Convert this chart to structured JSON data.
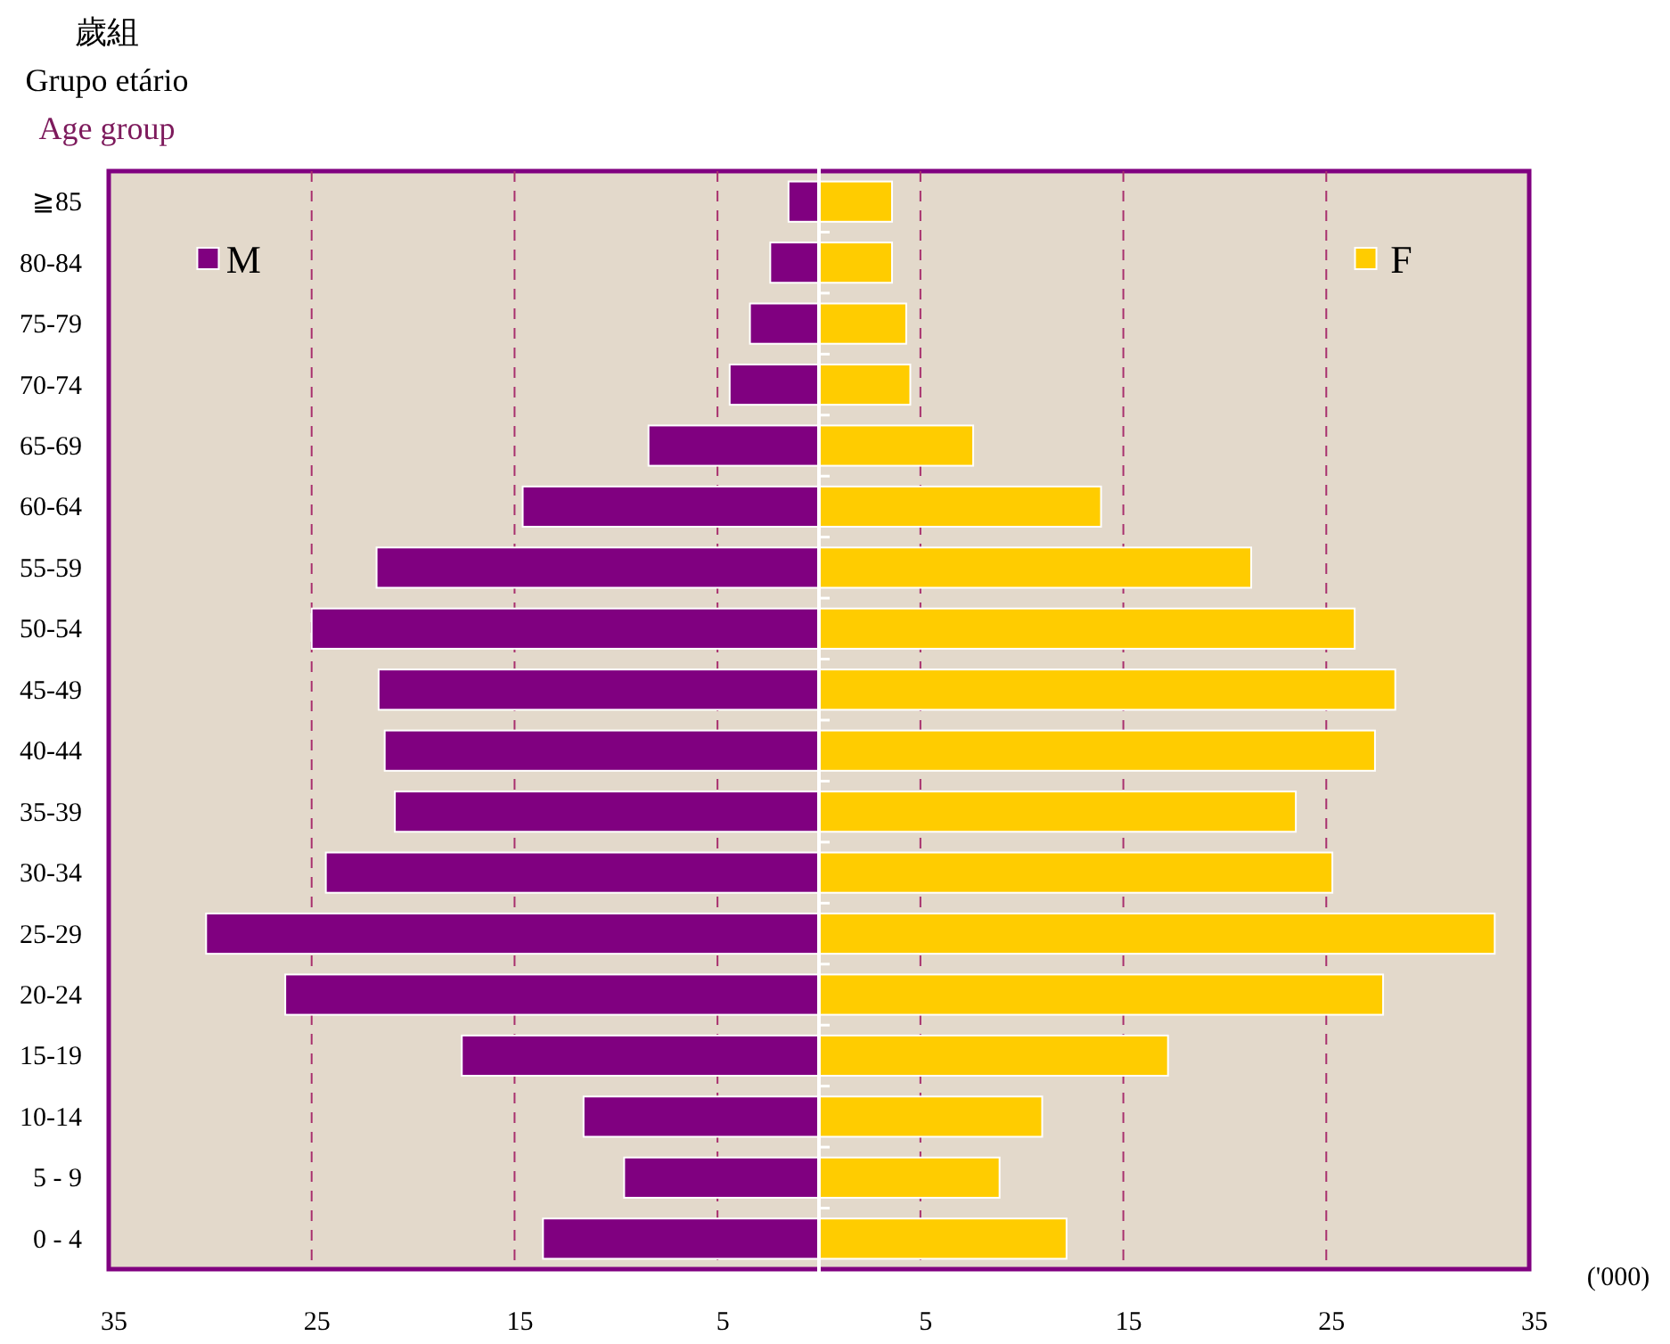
{
  "chart_data": {
    "type": "bar",
    "orientation": "horizontal",
    "stacked": true,
    "legend": "top",
    "annotations": [
      "歲組",
      "Grupo etário",
      "Age group"
    ],
    "xlabel": "('000)",
    "categories": [
      "≧85",
      "80-84",
      "75-79",
      "70-74",
      "65-69",
      "60-64",
      "55-59",
      "50-54",
      "45-49",
      "40-44",
      "35-39",
      "30-34",
      "25-29",
      "20-24",
      "15-19",
      "10-14",
      "5 - 9",
      "0 - 4"
    ],
    "series": [
      {
        "name": "M",
        "color": "#800080",
        "values": [
          -1.5,
          -2.4,
          -3.4,
          -4.4,
          -8.4,
          -14.6,
          -21.8,
          -25.0,
          -21.7,
          -21.4,
          -20.9,
          -24.3,
          -30.2,
          -26.3,
          -17.6,
          -11.6,
          -9.6,
          -13.6
        ]
      },
      {
        "name": "F",
        "color": "#ffcc00",
        "values": [
          3.6,
          3.6,
          4.3,
          4.5,
          7.6,
          13.9,
          21.3,
          26.4,
          28.4,
          27.4,
          23.5,
          25.3,
          33.3,
          27.8,
          17.2,
          11.0,
          8.9,
          12.2
        ]
      }
    ],
    "xlim": [
      -35,
      35
    ],
    "xticks": [
      {
        "value": -35,
        "label": "35"
      },
      {
        "value": -25,
        "label": "25"
      },
      {
        "value": -15,
        "label": "15"
      },
      {
        "value": -5,
        "label": "5"
      },
      5,
      15,
      25,
      35
    ],
    "grid": "x"
  }
}
